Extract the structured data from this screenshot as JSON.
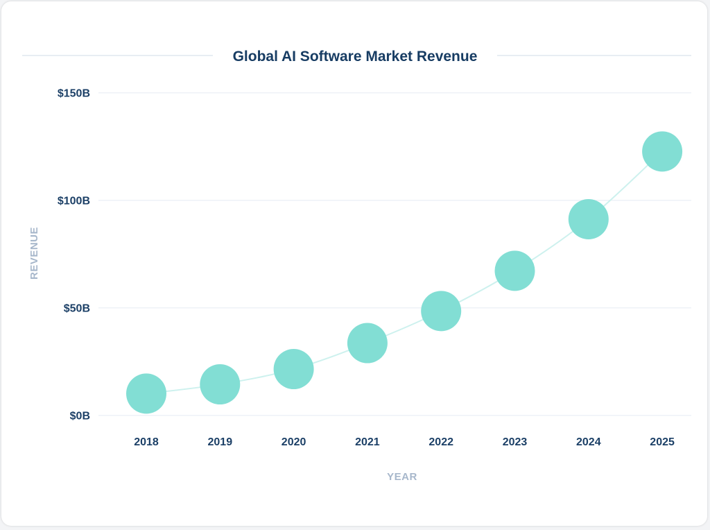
{
  "chart_data": {
    "type": "line",
    "title": "Global AI Software Market Revenue",
    "xlabel": "YEAR",
    "ylabel": "REVENUE",
    "categories": [
      "2018",
      "2019",
      "2020",
      "2021",
      "2022",
      "2023",
      "2024",
      "2025"
    ],
    "series": [
      {
        "values": [
          10.1,
          14.4,
          21.5,
          33.6,
          48.5,
          67.2,
          91.2,
          122.7
        ]
      }
    ],
    "ylim": [
      0,
      150
    ],
    "yticks": [
      0,
      50,
      100,
      150
    ],
    "ytick_labels": [
      "$0B",
      "$50B",
      "$100B",
      "$150B"
    ],
    "grid": true,
    "colors": {
      "point": "#82ded4",
      "line": "#cdf1ee",
      "grid": "#eef2f7",
      "title": "#173c63",
      "axis_title": "#a7b7cb"
    }
  }
}
